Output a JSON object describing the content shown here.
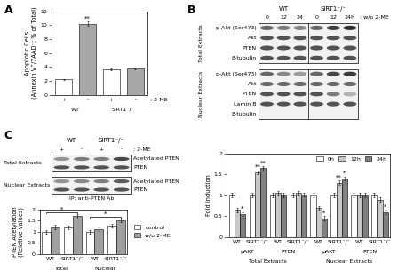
{
  "chart_data": [
    {
      "type": "bar",
      "panel_label": "A",
      "y_label": "Apoptotic Cells\n(Annexin V⁺/7AAD⁻; % of Total)",
      "categories": [
        "+",
        "-",
        "+",
        "-"
      ],
      "groups": [
        "WT",
        "SIRT1⁻/⁻"
      ],
      "x_note": ": 2-ME",
      "values": [
        2.2,
        10.2,
        3.7,
        3.8
      ],
      "errors": [
        0.1,
        0.3,
        0.15,
        0.15
      ],
      "colors": [
        "#ffffff",
        "#a8a8a8",
        "#ffffff",
        "#a8a8a8"
      ],
      "annotations": [
        {
          "category": 1,
          "text": "**"
        }
      ],
      "ylim": [
        0,
        12
      ],
      "yticks": [
        0,
        2,
        4,
        6,
        8,
        10,
        12
      ]
    },
    {
      "type": "bar",
      "y_label": "Fold Induction",
      "categories": [
        "WT",
        "SIRT1⁻/⁻",
        "WT",
        "SIRT1⁻/⁻",
        "WT",
        "SIRT1⁻/⁻",
        "WT",
        "SIRT1⁻/⁻"
      ],
      "groups": [
        "pAKT",
        "PTEN",
        "pAKT",
        "PTEN"
      ],
      "supergroups": [
        "Total Extracts",
        "Nuclear Extracts"
      ],
      "series": [
        {
          "name": "0h",
          "color": "#ffffff",
          "values": [
            1,
            1,
            1,
            1,
            1,
            1,
            1,
            1
          ],
          "errors": [
            0.05,
            0.05,
            0.05,
            0.05,
            0.05,
            0.05,
            0.05,
            0.05
          ]
        },
        {
          "name": "12h",
          "color": "#c8c8c8",
          "values": [
            0.65,
            1.55,
            1.05,
            1.05,
            0.7,
            1.3,
            1.0,
            0.9
          ],
          "errors": [
            0.05,
            0.05,
            0.05,
            0.05,
            0.05,
            0.05,
            0.05,
            0.05
          ]
        },
        {
          "name": "24h",
          "color": "#808080",
          "values": [
            0.55,
            1.65,
            1.0,
            1.02,
            0.45,
            1.4,
            1.0,
            0.6
          ],
          "errors": [
            0.05,
            0.05,
            0.05,
            0.05,
            0.05,
            0.05,
            0.05,
            0.05
          ]
        }
      ],
      "annotations": [
        {
          "series": 2,
          "category": 0,
          "text": "*"
        },
        {
          "series": 1,
          "category": 1,
          "text": "**"
        },
        {
          "series": 2,
          "category": 1,
          "text": "**"
        },
        {
          "series": 2,
          "category": 4,
          "text": "*"
        },
        {
          "series": 1,
          "category": 5,
          "text": "**"
        },
        {
          "series": 2,
          "category": 5,
          "text": "*"
        },
        {
          "series": 2,
          "category": 7,
          "text": "*"
        }
      ],
      "legend": "upper right",
      "ylim": [
        0,
        2
      ],
      "yticks": [
        0,
        0.5,
        1,
        1.5,
        2
      ]
    },
    {
      "type": "bar",
      "y_label": "PTEN Acetylation\n(Relative values)",
      "categories": [
        "WT",
        "SIRT1⁻/⁻",
        "WT",
        "SIRT1⁻/⁻"
      ],
      "groups": [
        "Total",
        "Nuclear"
      ],
      "series": [
        {
          "name": "control",
          "color": "#ffffff",
          "values": [
            1.0,
            1.2,
            1.0,
            1.25
          ],
          "errors": [
            0.08,
            0.08,
            0.08,
            0.08
          ]
        },
        {
          "name": "w/o 2-ME",
          "color": "#a0a0a0",
          "values": [
            1.2,
            1.7,
            1.1,
            1.5
          ],
          "errors": [
            0.1,
            0.1,
            0.08,
            0.08
          ]
        }
      ],
      "brackets": [
        {
          "from": {
            "series": 0,
            "category": 0
          },
          "to": {
            "series": 1,
            "category": 1
          },
          "text": "*"
        },
        {
          "from": {
            "series": 0,
            "category": 2
          },
          "to": {
            "series": 1,
            "category": 3
          },
          "text": "*"
        }
      ],
      "legend": "right",
      "ylim": [
        0,
        2
      ],
      "yticks": [
        0,
        0.5,
        1,
        1.5,
        2
      ]
    }
  ],
  "blots": [
    {
      "panel_label": "B",
      "lane_groups": [
        "WT",
        "SIRT1⁻/⁻"
      ],
      "lanes": [
        "0",
        "12",
        "24",
        "0",
        "12",
        "24h"
      ],
      "lane_note": ": w/o 2-ME",
      "sections": [
        {
          "label": "Total Extracts",
          "rows": [
            {
              "label": "p-Akt (Ser473)",
              "bands": [
                0.7,
                0.6,
                0.55,
                0.7,
                0.9,
                0.95
              ]
            },
            {
              "label": "Akt",
              "bands": [
                0.8,
                0.8,
                0.8,
                0.8,
                0.8,
                0.8
              ]
            },
            {
              "label": "PTEN",
              "bands": [
                0.8,
                0.8,
                0.8,
                0.8,
                0.8,
                0.8
              ]
            },
            {
              "label": "β-tubulin",
              "bands": [
                0.8,
                0.8,
                0.8,
                0.8,
                0.8,
                0.8
              ]
            }
          ]
        },
        {
          "label": "Nuclear Extracts",
          "rows": [
            {
              "label": "p-Akt (Ser473)",
              "bands": [
                0.7,
                0.55,
                0.45,
                0.7,
                0.85,
                0.9
              ]
            },
            {
              "label": "Akt",
              "bands": [
                0.7,
                0.7,
                0.7,
                0.7,
                0.7,
                0.7
              ]
            },
            {
              "label": "PTEN",
              "bands": [
                0.8,
                0.8,
                0.8,
                0.8,
                0.6,
                0.35
              ]
            },
            {
              "label": "Lamin B",
              "bands": [
                0.8,
                0.8,
                0.8,
                0.8,
                0.8,
                0.8
              ]
            },
            {
              "label": "β-tubulin",
              "bands": [
                0,
                0,
                0,
                0,
                0,
                0
              ]
            }
          ]
        }
      ]
    },
    {
      "panel_label": "C",
      "lane_groups": [
        "WT",
        "SIRT1⁻/⁻"
      ],
      "lanes": [
        "+",
        "-",
        "+",
        "-"
      ],
      "lane_note": ": 2-ME",
      "sections": [
        {
          "label": "Total Extracts",
          "rows": [
            {
              "label": "Acetylated PTEN",
              "bands": [
                0.5,
                0.6,
                0.6,
                0.85
              ]
            },
            {
              "label": "PTEN",
              "bands": [
                0.8,
                0.8,
                0.8,
                0.8
              ]
            }
          ]
        },
        {
          "label": "Nuclear Extracts",
          "rows": [
            {
              "label": "Acetylated PTEN",
              "bands": [
                0.5,
                0.55,
                0.6,
                0.75
              ]
            },
            {
              "label": "PTEN",
              "bands": [
                0.8,
                0.8,
                0.8,
                0.8
              ]
            }
          ]
        }
      ],
      "footer": "IP: anti-PTEN Ab"
    }
  ]
}
